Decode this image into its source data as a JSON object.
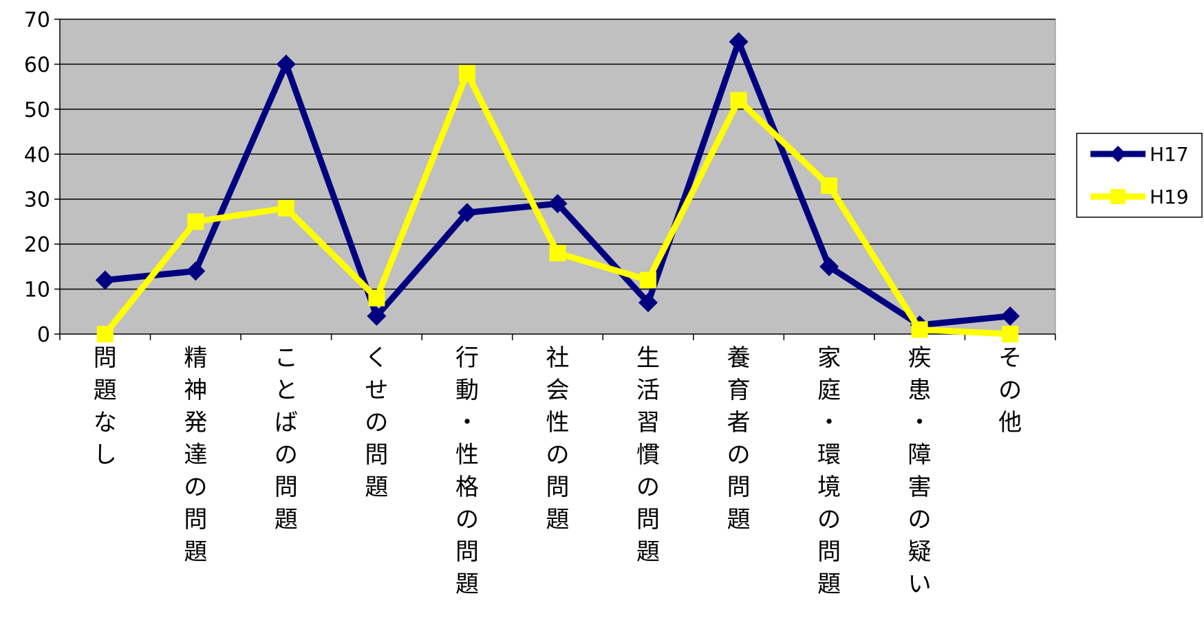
{
  "chart_data": {
    "type": "line",
    "categories": [
      "問題なし",
      "精神発達の問題",
      "ことばの問題",
      "くせの問題",
      "行動・性格の問題",
      "社会性の問題",
      "生活習慣の問題",
      "養育者の問題",
      "家庭・環境の問題",
      "疾患・障害の疑い",
      "その他"
    ],
    "series": [
      {
        "name": "H17",
        "color": "#000080",
        "marker": "diamond",
        "values": [
          12,
          14,
          60,
          4,
          27,
          29,
          7,
          65,
          15,
          2,
          4
        ]
      },
      {
        "name": "H19",
        "color": "#FFFF00",
        "marker": "square",
        "values": [
          0,
          25,
          28,
          8,
          58,
          18,
          12,
          52,
          33,
          1,
          0
        ]
      }
    ],
    "ylim": [
      0,
      70
    ],
    "yticks": [
      0,
      10,
      20,
      30,
      40,
      50,
      60,
      70
    ],
    "grid": true,
    "plot_background": "#C0C0C0",
    "legend_position": "right"
  }
}
